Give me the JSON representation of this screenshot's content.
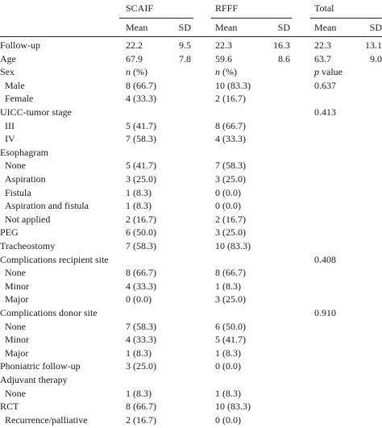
{
  "header": {
    "groups": [
      "SCAIF",
      "RFFF",
      "Total"
    ],
    "subheaders": [
      "Mean",
      "SD",
      "Mean",
      "SD",
      "Mean",
      "SD"
    ]
  },
  "rows": [
    {
      "label": "Follow-up",
      "indent": false,
      "cells": [
        "22.2",
        "9.5",
        "22.3",
        "16.3",
        "22.3",
        "13.1"
      ]
    },
    {
      "label": "Age",
      "indent": false,
      "cells": [
        "67.9",
        "7.8",
        "59.6",
        "8.6",
        "63.7",
        "9.0"
      ]
    },
    {
      "label": "Sex",
      "indent": false,
      "cells": [
        "n (%)",
        "",
        "n (%)",
        "",
        "p value",
        ""
      ]
    },
    {
      "label": "Male",
      "indent": true,
      "cells": [
        "8 (66.7)",
        "",
        "10 (83.3)",
        "",
        "0.637",
        ""
      ]
    },
    {
      "label": "Female",
      "indent": true,
      "cells": [
        "4 (33.3)",
        "",
        "2 (16.7)",
        "",
        "",
        ""
      ]
    },
    {
      "label": "UICC-tumor stage",
      "indent": false,
      "cells": [
        "",
        "",
        "",
        "",
        "0.413",
        ""
      ]
    },
    {
      "label": "III",
      "indent": true,
      "cells": [
        "5 (41.7)",
        "",
        "8 (66.7)",
        "",
        "",
        ""
      ]
    },
    {
      "label": "IV",
      "indent": true,
      "cells": [
        "7 (58.3)",
        "",
        "4 (33.3)",
        "",
        "",
        ""
      ]
    },
    {
      "label": "Esophagram",
      "indent": false,
      "cells": [
        "",
        "",
        "",
        "",
        "",
        ""
      ]
    },
    {
      "label": "None",
      "indent": true,
      "cells": [
        "5 (41.7)",
        "",
        "7 (58.3)",
        "",
        "",
        ""
      ]
    },
    {
      "label": "Aspiration",
      "indent": true,
      "cells": [
        "3 (25.0)",
        "",
        "3 (25.0)",
        "",
        "",
        ""
      ]
    },
    {
      "label": "Fistula",
      "indent": true,
      "cells": [
        "1 (8.3)",
        "",
        "0 (0.0)",
        "",
        "",
        ""
      ]
    },
    {
      "label": "Aspiration and fistula",
      "indent": true,
      "cells": [
        "1 (8.3)",
        "",
        "0 (0.0)",
        "",
        "",
        ""
      ]
    },
    {
      "label": "Not applied",
      "indent": true,
      "cells": [
        "2 (16.7)",
        "",
        "2 (16.7)",
        "",
        "",
        ""
      ]
    },
    {
      "label": "PEG",
      "indent": false,
      "cells": [
        "6 (50.0)",
        "",
        "3 (25.0)",
        "",
        "",
        ""
      ]
    },
    {
      "label": "Tracheostomy",
      "indent": false,
      "cells": [
        "7 (58.3)",
        "",
        "10 (83.3)",
        "",
        "",
        ""
      ]
    },
    {
      "label": "Complications recipient site",
      "indent": false,
      "cells": [
        "",
        "",
        "",
        "",
        "0.408",
        ""
      ]
    },
    {
      "label": "None",
      "indent": true,
      "cells": [
        "8 (66.7)",
        "",
        "8 (66.7)",
        "",
        "",
        ""
      ]
    },
    {
      "label": "Minor",
      "indent": true,
      "cells": [
        "4 (33.3)",
        "",
        "1 (8.3)",
        "",
        "",
        ""
      ]
    },
    {
      "label": "Major",
      "indent": true,
      "cells": [
        "0 (0.0)",
        "",
        "3 (25.0)",
        "",
        "",
        ""
      ]
    },
    {
      "label": "Complications donor site",
      "indent": false,
      "cells": [
        "",
        "",
        "",
        "",
        "0.910",
        ""
      ]
    },
    {
      "label": "None",
      "indent": true,
      "cells": [
        "7 (58.3)",
        "",
        "6 (50.0)",
        "",
        "",
        ""
      ]
    },
    {
      "label": "Minor",
      "indent": true,
      "cells": [
        "4 (33.3)",
        "",
        "5 (41.7)",
        "",
        "",
        ""
      ]
    },
    {
      "label": "Major",
      "indent": true,
      "cells": [
        "1 (8.3)",
        "",
        "1 (8.3)",
        "",
        "",
        ""
      ]
    },
    {
      "label": "Phoniatric follow-up",
      "indent": false,
      "cells": [
        "3 (25.0)",
        "",
        "0 (0.0)",
        "",
        "",
        ""
      ]
    },
    {
      "label": "Adjuvant therapy",
      "indent": false,
      "cells": [
        "",
        "",
        "",
        "",
        "",
        ""
      ]
    },
    {
      "label": "None",
      "indent": true,
      "cells": [
        "1 (8.3)",
        "",
        "1 (8.3)",
        "",
        "",
        ""
      ]
    },
    {
      "label": "RCT",
      "indent": false,
      "cells": [
        "8 (66.7)",
        "",
        "10 (83.3)",
        "",
        "",
        ""
      ]
    },
    {
      "label": "Recurrence/palliative",
      "indent": true,
      "cells": [
        "2 (16.7)",
        "",
        "0 (0.0)",
        "",
        "",
        ""
      ]
    }
  ],
  "italic_tokens": [
    "n",
    "p"
  ]
}
